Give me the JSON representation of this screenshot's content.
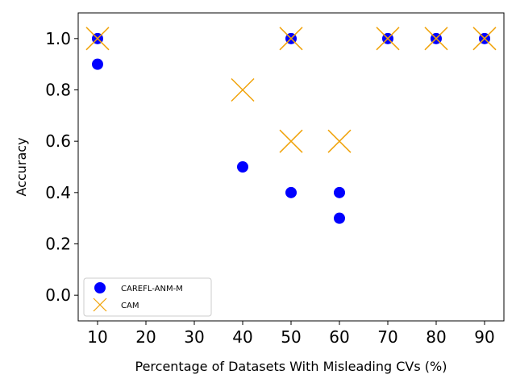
{
  "chart_data": {
    "type": "scatter",
    "title": "",
    "xlabel": "Percentage of Datasets With Misleading CVs (%)",
    "ylabel": "Accuracy",
    "xlim": [
      6,
      94
    ],
    "ylim": [
      -0.1,
      1.1
    ],
    "x_ticks": [
      10,
      20,
      30,
      40,
      50,
      60,
      70,
      80,
      90
    ],
    "y_ticks": [
      0.0,
      0.2,
      0.4,
      0.6,
      0.8,
      1.0
    ],
    "x_tick_labels": [
      "10",
      "20",
      "30",
      "40",
      "50",
      "60",
      "70",
      "80",
      "90"
    ],
    "y_tick_labels": [
      "0.0",
      "0.2",
      "0.4",
      "0.6",
      "0.8",
      "1.0"
    ],
    "grid": false,
    "legend_position": "bottom-left",
    "series": [
      {
        "name": "CAREFL-ANM-M",
        "marker": "circle",
        "color": "#0000ff",
        "points": [
          {
            "x": 10,
            "y": 1.0
          },
          {
            "x": 10,
            "y": 0.9
          },
          {
            "x": 40,
            "y": 0.5
          },
          {
            "x": 50,
            "y": 1.0
          },
          {
            "x": 50,
            "y": 0.4
          },
          {
            "x": 60,
            "y": 0.4
          },
          {
            "x": 60,
            "y": 0.3
          },
          {
            "x": 70,
            "y": 1.0
          },
          {
            "x": 80,
            "y": 1.0
          },
          {
            "x": 90,
            "y": 1.0
          }
        ]
      },
      {
        "name": "CAM",
        "marker": "x",
        "color": "#f0a30a",
        "points": [
          {
            "x": 10,
            "y": 1.0
          },
          {
            "x": 40,
            "y": 0.8
          },
          {
            "x": 50,
            "y": 1.0
          },
          {
            "x": 50,
            "y": 0.6
          },
          {
            "x": 60,
            "y": 0.6
          },
          {
            "x": 70,
            "y": 1.0
          },
          {
            "x": 80,
            "y": 1.0
          },
          {
            "x": 90,
            "y": 1.0
          }
        ]
      }
    ]
  }
}
